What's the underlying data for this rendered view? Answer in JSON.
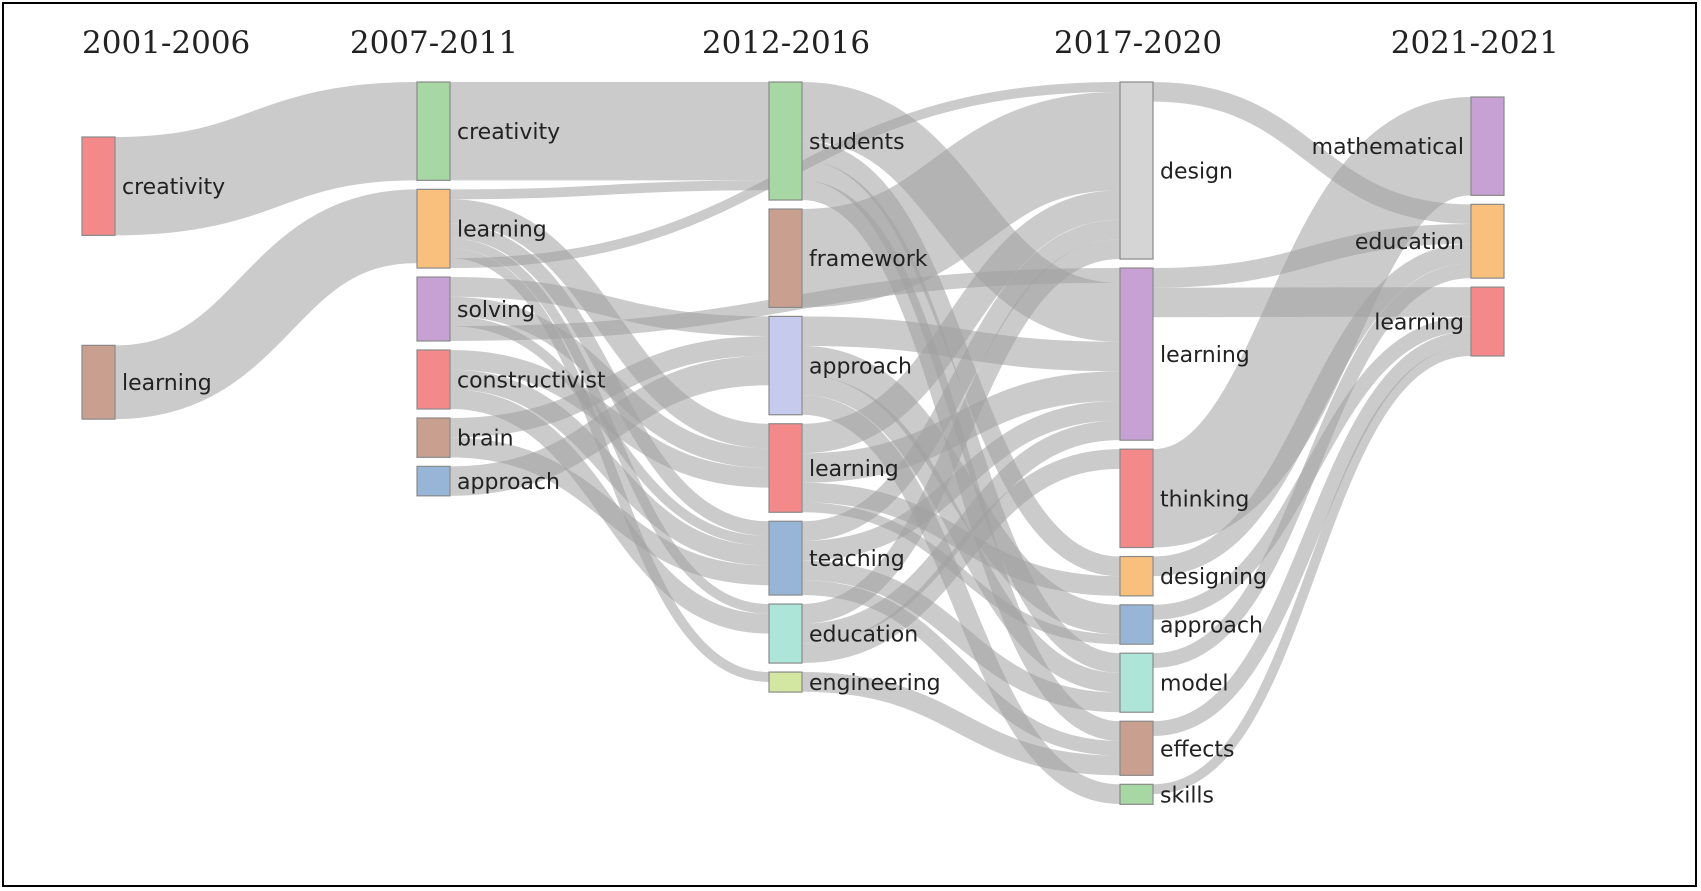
{
  "periods": [
    "2001-2006",
    "2007-2011",
    "2012-2016",
    "2017-2020",
    "2021-2021"
  ],
  "colors": {
    "red": "#f4898a",
    "brown": "#c9a090",
    "green": "#a7d7a2",
    "orange": "#f9c07d",
    "purple": "#c7a1d3",
    "blue": "#97b6d7",
    "lavender": "#c6cbee",
    "teal": "#ade5d9",
    "lime": "#d4e7a2",
    "gray": "#d5d5d5",
    "link": "#a0a0a0"
  },
  "nodes": [
    {
      "id": "c0_creativity",
      "label": "creativity",
      "col": 0,
      "color": "red"
    },
    {
      "id": "c0_learning",
      "label": "learning",
      "col": 0,
      "color": "brown"
    },
    {
      "id": "c1_creativity",
      "label": "creativity",
      "col": 1,
      "color": "green"
    },
    {
      "id": "c1_learning",
      "label": "learning",
      "col": 1,
      "color": "orange"
    },
    {
      "id": "c1_solving",
      "label": "solving",
      "col": 1,
      "color": "purple"
    },
    {
      "id": "c1_constructivist",
      "label": "constructivist",
      "col": 1,
      "color": "red"
    },
    {
      "id": "c1_brain",
      "label": "brain",
      "col": 1,
      "color": "brown"
    },
    {
      "id": "c1_approach",
      "label": "approach",
      "col": 1,
      "color": "blue"
    },
    {
      "id": "c2_students",
      "label": "students",
      "col": 2,
      "color": "green"
    },
    {
      "id": "c2_framework",
      "label": "framework",
      "col": 2,
      "color": "brown"
    },
    {
      "id": "c2_approach",
      "label": "approach",
      "col": 2,
      "color": "lavender"
    },
    {
      "id": "c2_learning",
      "label": "learning",
      "col": 2,
      "color": "red"
    },
    {
      "id": "c2_teaching",
      "label": "teaching",
      "col": 2,
      "color": "blue"
    },
    {
      "id": "c2_education",
      "label": "education",
      "col": 2,
      "color": "teal"
    },
    {
      "id": "c2_engineering",
      "label": "engineering",
      "col": 2,
      "color": "lime"
    },
    {
      "id": "c3_design",
      "label": "design",
      "col": 3,
      "color": "gray"
    },
    {
      "id": "c3_learning",
      "label": "learning",
      "col": 3,
      "color": "purple"
    },
    {
      "id": "c3_thinking",
      "label": "thinking",
      "col": 3,
      "color": "red"
    },
    {
      "id": "c3_designing",
      "label": "designing",
      "col": 3,
      "color": "orange"
    },
    {
      "id": "c3_approach",
      "label": "approach",
      "col": 3,
      "color": "blue"
    },
    {
      "id": "c3_model",
      "label": "model",
      "col": 3,
      "color": "teal"
    },
    {
      "id": "c3_effects",
      "label": "effects",
      "col": 3,
      "color": "brown"
    },
    {
      "id": "c3_skills",
      "label": "skills",
      "col": 3,
      "color": "green"
    },
    {
      "id": "c4_mathematical",
      "label": "mathematical",
      "col": 4,
      "color": "purple"
    },
    {
      "id": "c4_education",
      "label": "education",
      "col": 4,
      "color": "orange"
    },
    {
      "id": "c4_learning",
      "label": "learning",
      "col": 4,
      "color": "red"
    }
  ],
  "links": [
    {
      "source": "c0_creativity",
      "target": "c1_creativity",
      "value": 1.0
    },
    {
      "source": "c0_learning",
      "target": "c1_learning",
      "value": 0.75
    },
    {
      "source": "c1_creativity",
      "target": "c2_students",
      "value": 1.0
    },
    {
      "source": "c1_learning",
      "target": "c2_students",
      "value": 0.1
    },
    {
      "source": "c1_learning",
      "target": "c2_learning",
      "value": 0.25
    },
    {
      "source": "c1_learning",
      "target": "c2_teaching",
      "value": 0.15
    },
    {
      "source": "c1_learning",
      "target": "c2_education",
      "value": 0.1
    },
    {
      "source": "c1_learning",
      "target": "c2_engineering",
      "value": 0.1
    },
    {
      "source": "c1_learning",
      "target": "c3_design",
      "value": 0.1
    },
    {
      "source": "c1_solving",
      "target": "c2_approach",
      "value": 0.2
    },
    {
      "source": "c1_solving",
      "target": "c2_learning",
      "value": 0.2
    },
    {
      "source": "c1_solving",
      "target": "c2_teaching",
      "value": 0.1
    },
    {
      "source": "c1_solving",
      "target": "c3_learning",
      "value": 0.15
    },
    {
      "source": "c1_constructivist",
      "target": "c2_learning",
      "value": 0.2
    },
    {
      "source": "c1_constructivist",
      "target": "c2_teaching",
      "value": 0.2
    },
    {
      "source": "c1_constructivist",
      "target": "c2_education",
      "value": 0.2
    },
    {
      "source": "c1_brain",
      "target": "c2_approach",
      "value": 0.2
    },
    {
      "source": "c1_brain",
      "target": "c2_teaching",
      "value": 0.2
    },
    {
      "source": "c1_approach",
      "target": "c2_approach",
      "value": 0.3
    },
    {
      "source": "c2_students",
      "target": "c3_learning",
      "value": 0.6
    },
    {
      "source": "c2_students",
      "target": "c3_designing",
      "value": 0.2
    },
    {
      "source": "c2_students",
      "target": "c3_model",
      "value": 0.2
    },
    {
      "source": "c2_students",
      "target": "c3_effects",
      "value": 0.2
    },
    {
      "source": "c2_framework",
      "target": "c3_design",
      "value": 1.0
    },
    {
      "source": "c2_approach",
      "target": "c3_learning",
      "value": 0.3
    },
    {
      "source": "c2_approach",
      "target": "c3_approach",
      "value": 0.3
    },
    {
      "source": "c2_approach",
      "target": "c3_model",
      "value": 0.2
    },
    {
      "source": "c2_approach",
      "target": "c3_skills",
      "value": 0.2
    },
    {
      "source": "c2_learning",
      "target": "c3_design",
      "value": 0.3
    },
    {
      "source": "c2_learning",
      "target": "c3_learning",
      "value": 0.3
    },
    {
      "source": "c2_learning",
      "target": "c3_designing",
      "value": 0.2
    },
    {
      "source": "c2_learning",
      "target": "c3_approach",
      "value": 0.1
    },
    {
      "source": "c2_teaching",
      "target": "c3_design",
      "value": 0.2
    },
    {
      "source": "c2_teaching",
      "target": "c3_learning",
      "value": 0.2
    },
    {
      "source": "c2_teaching",
      "target": "c3_model",
      "value": 0.2
    },
    {
      "source": "c2_teaching",
      "target": "c3_effects",
      "value": 0.15
    },
    {
      "source": "c2_education",
      "target": "c3_design",
      "value": 0.2
    },
    {
      "source": "c2_education",
      "target": "c3_learning",
      "value": 0.2
    },
    {
      "source": "c2_education",
      "target": "c3_thinking",
      "value": 0.2
    },
    {
      "source": "c2_engineering",
      "target": "c3_effects",
      "value": 0.2
    },
    {
      "source": "c3_design",
      "target": "c4_education",
      "value": 0.2
    },
    {
      "source": "c3_learning",
      "target": "c4_education",
      "value": 0.2
    },
    {
      "source": "c3_learning",
      "target": "c4_learning",
      "value": 0.3
    },
    {
      "source": "c3_thinking",
      "target": "c4_mathematical",
      "value": 1.0
    },
    {
      "source": "c3_designing",
      "target": "c4_education",
      "value": 0.2
    },
    {
      "source": "c3_approach",
      "target": "c4_learning",
      "value": 0.15
    },
    {
      "source": "c3_model",
      "target": "c4_education",
      "value": 0.15
    },
    {
      "source": "c3_effects",
      "target": "c4_learning",
      "value": 0.15
    },
    {
      "source": "c3_skills",
      "target": "c4_learning",
      "value": 0.1
    }
  ]
}
